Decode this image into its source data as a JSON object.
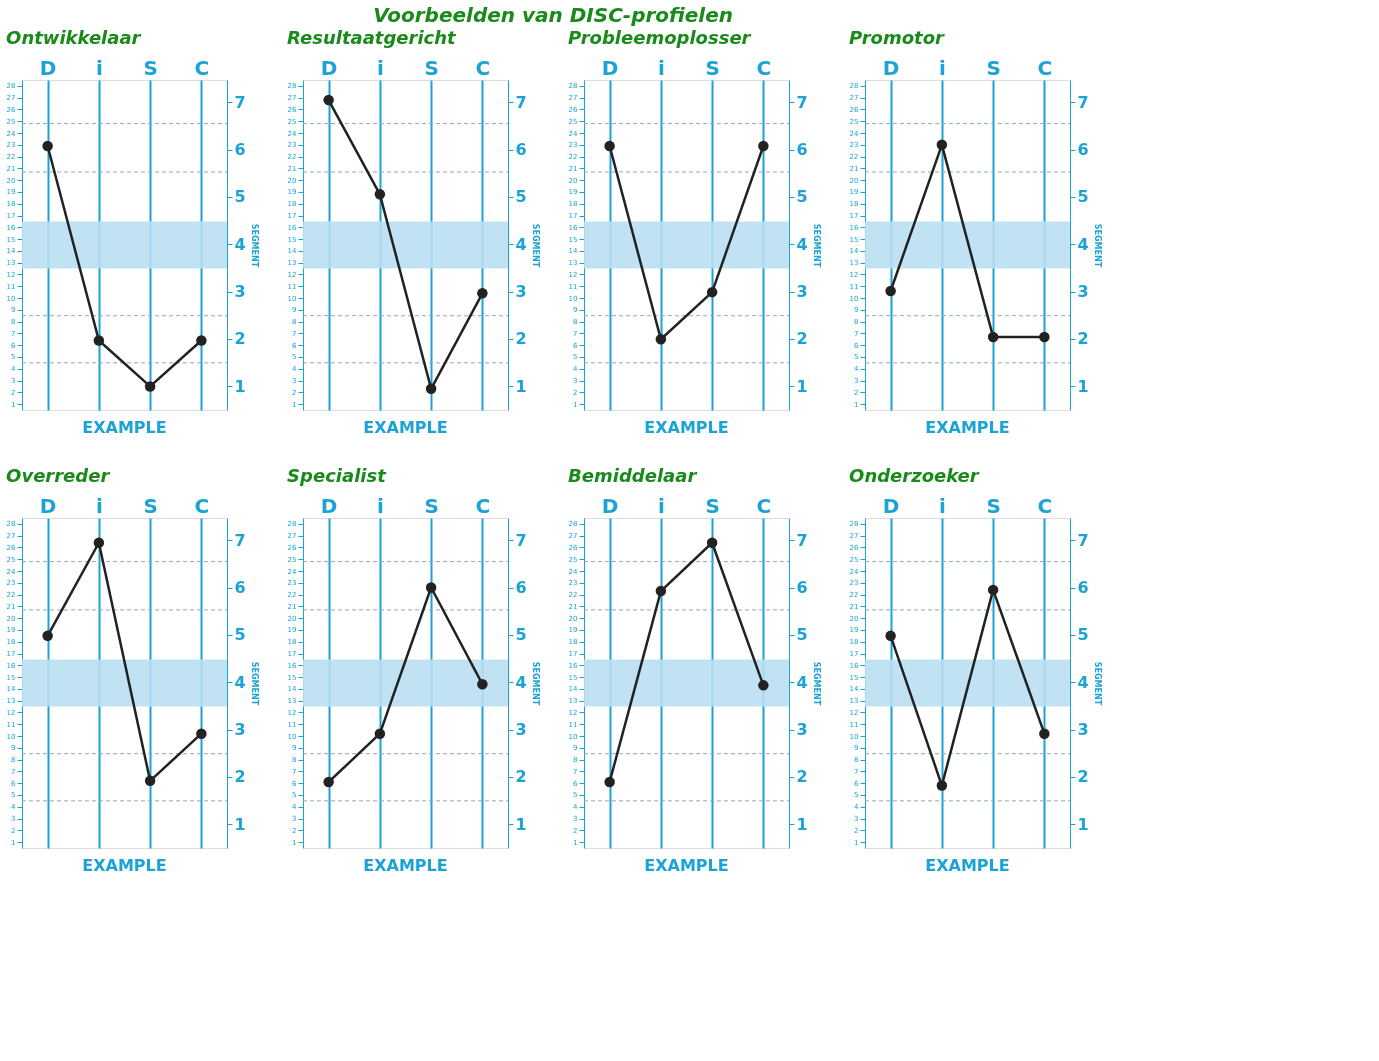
{
  "chart_data": [
    {
      "type": "line",
      "title": "Ontwikkelaar",
      "categories": [
        "D",
        "i",
        "S",
        "C"
      ],
      "values": [
        22.9,
        6.4,
        2.5,
        6.4
      ],
      "color": "#222222",
      "marker": "circle",
      "grid": "x",
      "ylim": [
        0.5,
        28.5
      ],
      "yticks": [
        1,
        2,
        3,
        4,
        5,
        6,
        7,
        8,
        9,
        10,
        11,
        12,
        13,
        14,
        15,
        16,
        17,
        18,
        19,
        20,
        21,
        22,
        23,
        24,
        25,
        26,
        27,
        28
      ],
      "y2lim": [
        0.5,
        7.47
      ],
      "y2label": "SEGMENT",
      "y2ticks": [
        1,
        2,
        3,
        4,
        5,
        6,
        7
      ],
      "bands": [
        {
          "axis": "y",
          "from": 12.5,
          "to": 16.5,
          "color": "#b9dff2"
        }
      ],
      "ref_lines": [
        {
          "axis": "y",
          "value": 4.5,
          "line_style": "dashed"
        },
        {
          "axis": "y",
          "value": 8.5,
          "line_style": "dashed"
        },
        {
          "axis": "y",
          "value": 20.7,
          "line_style": "dashed"
        },
        {
          "axis": "y",
          "value": 24.8,
          "line_style": "dashed"
        }
      ],
      "annotations": [
        "Voorbeelden van DISC-profielen",
        "EXAMPLE"
      ]
    },
    {
      "type": "line",
      "title": "Resultaatgericht",
      "categories": [
        "D",
        "i",
        "S",
        "C"
      ],
      "values": [
        26.8,
        18.8,
        2.3,
        10.4
      ],
      "color": "#222222",
      "marker": "circle",
      "grid": "x",
      "ylim": [
        0.5,
        28.5
      ],
      "yticks": [
        1,
        2,
        3,
        4,
        5,
        6,
        7,
        8,
        9,
        10,
        11,
        12,
        13,
        14,
        15,
        16,
        17,
        18,
        19,
        20,
        21,
        22,
        23,
        24,
        25,
        26,
        27,
        28
      ],
      "y2lim": [
        0.5,
        7.47
      ],
      "y2label": "SEGMENT",
      "y2ticks": [
        1,
        2,
        3,
        4,
        5,
        6,
        7
      ],
      "bands": [
        {
          "axis": "y",
          "from": 12.5,
          "to": 16.5,
          "color": "#b9dff2"
        }
      ],
      "ref_lines": [
        {
          "axis": "y",
          "value": 4.5,
          "line_style": "dashed"
        },
        {
          "axis": "y",
          "value": 8.5,
          "line_style": "dashed"
        },
        {
          "axis": "y",
          "value": 20.7,
          "line_style": "dashed"
        },
        {
          "axis": "y",
          "value": 24.8,
          "line_style": "dashed"
        }
      ],
      "annotations": [
        "EXAMPLE"
      ]
    },
    {
      "type": "line",
      "title": "Probleemoplosser",
      "categories": [
        "D",
        "i",
        "S",
        "C"
      ],
      "values": [
        22.9,
        6.5,
        10.5,
        22.9
      ],
      "color": "#222222",
      "marker": "circle",
      "grid": "x",
      "ylim": [
        0.5,
        28.5
      ],
      "yticks": [
        1,
        2,
        3,
        4,
        5,
        6,
        7,
        8,
        9,
        10,
        11,
        12,
        13,
        14,
        15,
        16,
        17,
        18,
        19,
        20,
        21,
        22,
        23,
        24,
        25,
        26,
        27,
        28
      ],
      "y2lim": [
        0.5,
        7.47
      ],
      "y2label": "SEGMENT",
      "y2ticks": [
        1,
        2,
        3,
        4,
        5,
        6,
        7
      ],
      "bands": [
        {
          "axis": "y",
          "from": 12.5,
          "to": 16.5,
          "color": "#b9dff2"
        }
      ],
      "ref_lines": [
        {
          "axis": "y",
          "value": 4.5,
          "line_style": "dashed"
        },
        {
          "axis": "y",
          "value": 8.5,
          "line_style": "dashed"
        },
        {
          "axis": "y",
          "value": 20.7,
          "line_style": "dashed"
        },
        {
          "axis": "y",
          "value": 24.8,
          "line_style": "dashed"
        }
      ],
      "annotations": [
        "EXAMPLE"
      ]
    },
    {
      "type": "line",
      "title": "Promotor",
      "categories": [
        "D",
        "i",
        "S",
        "C"
      ],
      "values": [
        10.6,
        23.0,
        6.7,
        6.7
      ],
      "color": "#222222",
      "marker": "circle",
      "grid": "x",
      "ylim": [
        0.5,
        28.5
      ],
      "yticks": [
        1,
        2,
        3,
        4,
        5,
        6,
        7,
        8,
        9,
        10,
        11,
        12,
        13,
        14,
        15,
        16,
        17,
        18,
        19,
        20,
        21,
        22,
        23,
        24,
        25,
        26,
        27,
        28
      ],
      "y2lim": [
        0.5,
        7.47
      ],
      "y2label": "SEGMENT",
      "y2ticks": [
        1,
        2,
        3,
        4,
        5,
        6,
        7
      ],
      "bands": [
        {
          "axis": "y",
          "from": 12.5,
          "to": 16.5,
          "color": "#b9dff2"
        }
      ],
      "ref_lines": [
        {
          "axis": "y",
          "value": 4.5,
          "line_style": "dashed"
        },
        {
          "axis": "y",
          "value": 8.5,
          "line_style": "dashed"
        },
        {
          "axis": "y",
          "value": 20.7,
          "line_style": "dashed"
        },
        {
          "axis": "y",
          "value": 24.8,
          "line_style": "dashed"
        }
      ],
      "annotations": [
        "EXAMPLE"
      ]
    },
    {
      "type": "line",
      "title": "Overreder",
      "categories": [
        "D",
        "i",
        "S",
        "C"
      ],
      "values": [
        18.5,
        26.4,
        6.2,
        10.2
      ],
      "color": "#222222",
      "marker": "circle",
      "grid": "x",
      "ylim": [
        0.5,
        28.5
      ],
      "yticks": [
        1,
        2,
        3,
        4,
        5,
        6,
        7,
        8,
        9,
        10,
        11,
        12,
        13,
        14,
        15,
        16,
        17,
        18,
        19,
        20,
        21,
        22,
        23,
        24,
        25,
        26,
        27,
        28
      ],
      "y2lim": [
        0.5,
        7.47
      ],
      "y2label": "SEGMENT",
      "y2ticks": [
        1,
        2,
        3,
        4,
        5,
        6,
        7
      ],
      "bands": [
        {
          "axis": "y",
          "from": 12.5,
          "to": 16.5,
          "color": "#b9dff2"
        }
      ],
      "ref_lines": [
        {
          "axis": "y",
          "value": 4.5,
          "line_style": "dashed"
        },
        {
          "axis": "y",
          "value": 8.5,
          "line_style": "dashed"
        },
        {
          "axis": "y",
          "value": 20.7,
          "line_style": "dashed"
        },
        {
          "axis": "y",
          "value": 24.8,
          "line_style": "dashed"
        }
      ],
      "annotations": [
        "EXAMPLE"
      ]
    },
    {
      "type": "line",
      "title": "Specialist",
      "categories": [
        "D",
        "i",
        "S",
        "C"
      ],
      "values": [
        6.1,
        10.2,
        22.6,
        14.4
      ],
      "color": "#222222",
      "marker": "circle",
      "grid": "x",
      "ylim": [
        0.5,
        28.5
      ],
      "yticks": [
        1,
        2,
        3,
        4,
        5,
        6,
        7,
        8,
        9,
        10,
        11,
        12,
        13,
        14,
        15,
        16,
        17,
        18,
        19,
        20,
        21,
        22,
        23,
        24,
        25,
        26,
        27,
        28
      ],
      "y2lim": [
        0.5,
        7.47
      ],
      "y2label": "SEGMENT",
      "y2ticks": [
        1,
        2,
        3,
        4,
        5,
        6,
        7
      ],
      "bands": [
        {
          "axis": "y",
          "from": 12.5,
          "to": 16.5,
          "color": "#b9dff2"
        }
      ],
      "ref_lines": [
        {
          "axis": "y",
          "value": 4.5,
          "line_style": "dashed"
        },
        {
          "axis": "y",
          "value": 8.5,
          "line_style": "dashed"
        },
        {
          "axis": "y",
          "value": 20.7,
          "line_style": "dashed"
        },
        {
          "axis": "y",
          "value": 24.8,
          "line_style": "dashed"
        }
      ],
      "annotations": [
        "EXAMPLE"
      ]
    },
    {
      "type": "line",
      "title": "Bemiddelaar",
      "categories": [
        "D",
        "i",
        "S",
        "C"
      ],
      "values": [
        6.1,
        22.3,
        26.4,
        14.3
      ],
      "color": "#222222",
      "marker": "circle",
      "grid": "x",
      "ylim": [
        0.5,
        28.5
      ],
      "yticks": [
        1,
        2,
        3,
        4,
        5,
        6,
        7,
        8,
        9,
        10,
        11,
        12,
        13,
        14,
        15,
        16,
        17,
        18,
        19,
        20,
        21,
        22,
        23,
        24,
        25,
        26,
        27,
        28
      ],
      "y2lim": [
        0.5,
        7.47
      ],
      "y2label": "SEGMENT",
      "y2ticks": [
        1,
        2,
        3,
        4,
        5,
        6,
        7
      ],
      "bands": [
        {
          "axis": "y",
          "from": 12.5,
          "to": 16.5,
          "color": "#b9dff2"
        }
      ],
      "ref_lines": [
        {
          "axis": "y",
          "value": 4.5,
          "line_style": "dashed"
        },
        {
          "axis": "y",
          "value": 8.5,
          "line_style": "dashed"
        },
        {
          "axis": "y",
          "value": 20.7,
          "line_style": "dashed"
        },
        {
          "axis": "y",
          "value": 24.8,
          "line_style": "dashed"
        }
      ],
      "annotations": [
        "EXAMPLE"
      ]
    },
    {
      "type": "line",
      "title": "Onderzoeker",
      "categories": [
        "D",
        "i",
        "S",
        "C"
      ],
      "values": [
        18.5,
        5.8,
        22.4,
        10.2
      ],
      "color": "#222222",
      "marker": "circle",
      "grid": "x",
      "ylim": [
        0.5,
        28.5
      ],
      "yticks": [
        1,
        2,
        3,
        4,
        5,
        6,
        7,
        8,
        9,
        10,
        11,
        12,
        13,
        14,
        15,
        16,
        17,
        18,
        19,
        20,
        21,
        22,
        23,
        24,
        25,
        26,
        27,
        28
      ],
      "y2lim": [
        0.5,
        7.47
      ],
      "y2label": "SEGMENT",
      "y2ticks": [
        1,
        2,
        3,
        4,
        5,
        6,
        7
      ],
      "bands": [
        {
          "axis": "y",
          "from": 12.5,
          "to": 16.5,
          "color": "#b9dff2"
        }
      ],
      "ref_lines": [
        {
          "axis": "y",
          "value": 4.5,
          "line_style": "dashed"
        },
        {
          "axis": "y",
          "value": 8.5,
          "line_style": "dashed"
        },
        {
          "axis": "y",
          "value": 20.7,
          "line_style": "dashed"
        },
        {
          "axis": "y",
          "value": 24.8,
          "line_style": "dashed"
        }
      ],
      "annotations": [
        "EXAMPLE"
      ]
    }
  ]
}
